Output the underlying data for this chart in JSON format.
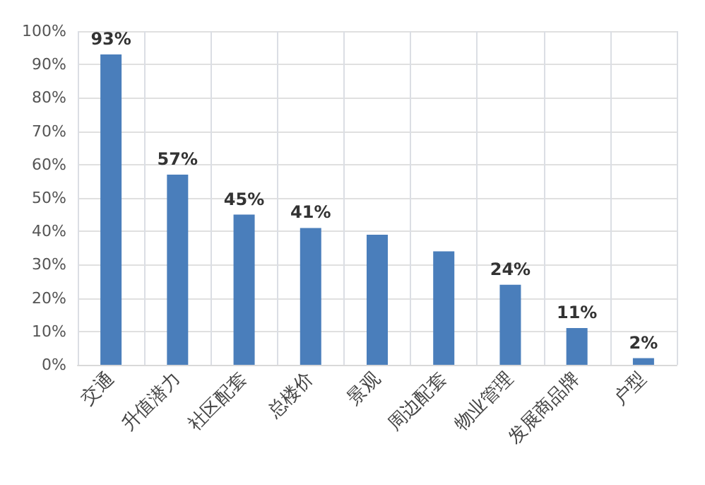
{
  "chart_data": {
    "type": "bar",
    "categories": [
      "交通",
      "升值潜力",
      "社区配套",
      "总楼价",
      "景观",
      "周边配套",
      "物业管理",
      "发展商品牌",
      "户型"
    ],
    "values": [
      93,
      57,
      45,
      41,
      39,
      34,
      24,
      11,
      2
    ],
    "value_labels": [
      "93%",
      "57%",
      "45%",
      "41%",
      null,
      null,
      "24%",
      "11%",
      "2%"
    ],
    "color": "#4a7ebb",
    "ylim": [
      0,
      100
    ],
    "yticks": [
      {
        "value": 0,
        "label": "0%"
      },
      {
        "value": 10,
        "label": "10%"
      },
      {
        "value": 20,
        "label": "20%"
      },
      {
        "value": 30,
        "label": "30%"
      },
      {
        "value": 40,
        "label": "40%"
      },
      {
        "value": 50,
        "label": "50%"
      },
      {
        "value": 60,
        "label": "60%"
      },
      {
        "value": 70,
        "label": "70%"
      },
      {
        "value": 80,
        "label": "80%"
      },
      {
        "value": 90,
        "label": "90%"
      },
      {
        "value": 100,
        "label": "100%"
      }
    ],
    "grid": true
  }
}
